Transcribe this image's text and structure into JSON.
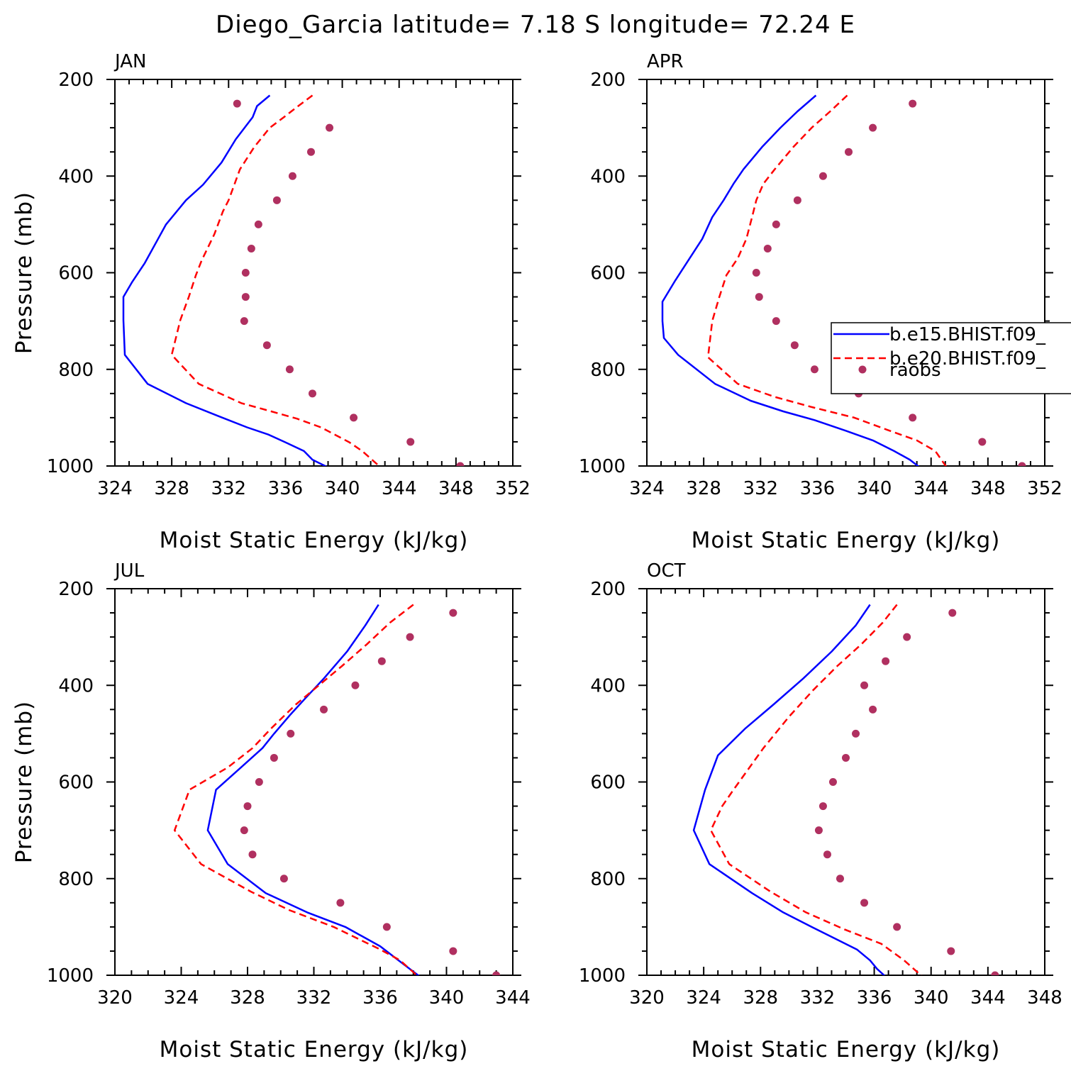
{
  "title": "Diego_Garcia  latitude= 7.18 S longitude= 72.24 E",
  "colors": {
    "model1": "#0000ff",
    "model2": "#ff0000",
    "obs": "#b03060",
    "axes": "#000000"
  },
  "legend": {
    "entries": [
      "b.e15.BHIST.f09_",
      "b.e20.BHIST.f09_",
      "raobs"
    ]
  },
  "chart_data": [
    {
      "type": "line",
      "panel": "JAN",
      "title": "JAN",
      "xlabel": "Moist Static Energy (kJ/kg)",
      "ylabel": "Pressure (mb)",
      "xlim": [
        324,
        352
      ],
      "ylim": [
        1000,
        200
      ],
      "xticks": [
        324,
        328,
        332,
        336,
        340,
        344,
        348,
        352
      ],
      "yticks": [
        200,
        400,
        600,
        800,
        1000
      ],
      "series": [
        {
          "name": "b.e15.BHIST.f09_",
          "style": "solid",
          "x": [
            334.9,
            334.0,
            333.7,
            332.5,
            331.5,
            330.2,
            329.0,
            327.6,
            327.0,
            326.1,
            325.2,
            324.6,
            324.6,
            324.7,
            326.3,
            329.0,
            331.3,
            333.3,
            334.8,
            336.0,
            337.3,
            337.9,
            339.0
          ],
          "y": [
            233,
            255,
            278,
            324,
            372,
            418,
            450,
            500,
            532,
            580,
            620,
            650,
            698,
            770,
            830,
            870,
            897,
            920,
            935,
            951,
            969,
            987,
            1003
          ]
        },
        {
          "name": "b.e20.BHIST.f09_",
          "style": "dashed",
          "x": [
            337.9,
            336.9,
            335.9,
            334.9,
            333.8,
            332.8,
            332.0,
            331.6,
            331.0,
            330.1,
            329.7,
            329.2,
            328.6,
            328.0,
            329.9,
            332.9,
            335.0,
            336.8,
            338.5,
            340.5,
            341.4,
            342.7
          ],
          "y": [
            233,
            255,
            278,
            300,
            340,
            386,
            450,
            473,
            520,
            575,
            605,
            650,
            698,
            770,
            830,
            870,
            887,
            902,
            920,
            951,
            969,
            1003
          ]
        },
        {
          "name": "raobs",
          "style": "dots",
          "x": [
            332.6,
            339.1,
            337.8,
            336.5,
            335.4,
            334.1,
            333.6,
            333.2,
            333.2,
            333.1,
            334.7,
            336.3,
            337.9,
            340.8,
            344.8,
            348.3
          ],
          "y": [
            250,
            300,
            350,
            400,
            450,
            500,
            550,
            600,
            650,
            700,
            750,
            800,
            850,
            900,
            950,
            1000
          ]
        }
      ]
    },
    {
      "type": "line",
      "panel": "APR",
      "title": "APR",
      "xlabel": "Moist Static Energy (kJ/kg)",
      "ylabel": "Pressure (mb)",
      "xlim": [
        324,
        352
      ],
      "ylim": [
        1000,
        200
      ],
      "xticks": [
        324,
        328,
        332,
        336,
        340,
        344,
        348,
        352
      ],
      "yticks": [
        200,
        400,
        600,
        800,
        1000
      ],
      "series": [
        {
          "name": "b.e15.BHIST.f09_",
          "style": "solid",
          "x": [
            335.9,
            334.6,
            333.4,
            332.1,
            330.8,
            330.1,
            329.4,
            328.6,
            327.9,
            326.0,
            325.1,
            325.1,
            325.2,
            326.2,
            328.8,
            331.3,
            333.6,
            335.8,
            338.0,
            339.9,
            341.4,
            342.5,
            343.2
          ],
          "y": [
            233,
            266,
            300,
            340,
            386,
            416,
            450,
            485,
            530,
            616,
            660,
            700,
            735,
            770,
            830,
            865,
            887,
            905,
            927,
            947,
            969,
            987,
            1003
          ]
        },
        {
          "name": "b.e20.BHIST.f09_",
          "style": "dashed",
          "x": [
            338.1,
            336.9,
            335.6,
            334.3,
            333.0,
            332.2,
            331.7,
            331.4,
            331.0,
            330.4,
            329.6,
            329.1,
            328.6,
            328.3,
            330.4,
            333.0,
            335.6,
            338.6,
            340.9,
            343.0,
            344.3,
            345.1
          ],
          "y": [
            233,
            266,
            300,
            340,
            386,
            416,
            450,
            485,
            530,
            570,
            605,
            650,
            700,
            775,
            830,
            857,
            878,
            900,
            925,
            947,
            969,
            1003
          ]
        },
        {
          "name": "raobs",
          "style": "dots",
          "x": [
            342.7,
            339.9,
            338.2,
            336.4,
            334.6,
            333.1,
            332.5,
            331.7,
            331.9,
            333.1,
            334.4,
            335.8,
            338.9,
            342.7,
            347.6,
            350.4
          ],
          "y": [
            250,
            300,
            350,
            400,
            450,
            500,
            550,
            600,
            650,
            700,
            750,
            800,
            850,
            900,
            950,
            1000
          ]
        }
      ]
    },
    {
      "type": "line",
      "panel": "JUL",
      "title": "JUL",
      "xlabel": "Moist Static Energy (kJ/kg)",
      "ylabel": "Pressure (mb)",
      "xlim": [
        320,
        344
      ],
      "ylim": [
        1000,
        200
      ],
      "xticks": [
        320,
        324,
        328,
        332,
        336,
        340,
        344
      ],
      "yticks": [
        200,
        400,
        600,
        800,
        1000
      ],
      "series": [
        {
          "name": "b.e15.BHIST.f09_",
          "style": "solid",
          "x": [
            335.9,
            335.1,
            334.0,
            332.6,
            331.4,
            330.6,
            329.6,
            328.9,
            327.6,
            326.1,
            325.6,
            326.8,
            329.1,
            331.6,
            333.9,
            336.0,
            337.1,
            338.4
          ],
          "y": [
            233,
            276,
            330,
            386,
            430,
            460,
            500,
            530,
            570,
            616,
            700,
            770,
            830,
            870,
            900,
            940,
            969,
            1003
          ]
        },
        {
          "name": "b.e20.BHIST.f09_",
          "style": "dashed",
          "x": [
            338.0,
            336.6,
            335.2,
            333.7,
            332.3,
            330.9,
            329.4,
            328.3,
            326.8,
            324.5,
            323.6,
            325.2,
            328.2,
            330.5,
            333.2,
            335.9,
            337.2,
            338.3
          ],
          "y": [
            233,
            270,
            315,
            360,
            400,
            440,
            490,
            530,
            570,
            616,
            700,
            770,
            827,
            865,
            900,
            945,
            969,
            1003
          ]
        },
        {
          "name": "raobs",
          "style": "dots",
          "x": [
            340.4,
            337.8,
            336.1,
            334.5,
            332.6,
            330.6,
            329.6,
            328.7,
            328.0,
            327.8,
            328.3,
            330.2,
            333.6,
            336.4,
            340.4,
            343.0
          ],
          "y": [
            250,
            300,
            350,
            400,
            450,
            500,
            550,
            600,
            650,
            700,
            750,
            800,
            850,
            900,
            950,
            1000
          ]
        }
      ]
    },
    {
      "type": "line",
      "panel": "OCT",
      "title": "OCT",
      "xlabel": "Moist Static Energy (kJ/kg)",
      "ylabel": "Pressure (mb)",
      "xlim": [
        320,
        348
      ],
      "ylim": [
        1000,
        200
      ],
      "xticks": [
        320,
        324,
        328,
        332,
        336,
        340,
        344,
        348
      ],
      "yticks": [
        200,
        400,
        600,
        800,
        1000
      ],
      "series": [
        {
          "name": "b.e15.BHIST.f09_",
          "style": "solid",
          "x": [
            335.7,
            334.7,
            333.0,
            331.0,
            328.9,
            326.9,
            325.0,
            324.1,
            323.3,
            324.4,
            327.4,
            329.6,
            331.6,
            333.3,
            334.8,
            335.7,
            336.2,
            336.8
          ],
          "y": [
            233,
            276,
            330,
            386,
            440,
            490,
            545,
            616,
            700,
            770,
            830,
            870,
            900,
            925,
            947,
            969,
            987,
            1003
          ]
        },
        {
          "name": "b.e20.BHIST.f09_",
          "style": "dashed",
          "x": [
            337.6,
            336.6,
            335.1,
            333.4,
            331.7,
            330.0,
            328.2,
            326.1,
            325.3,
            324.5,
            325.8,
            328.7,
            331.2,
            333.9,
            336.5,
            338.1,
            339.4
          ],
          "y": [
            233,
            270,
            315,
            360,
            410,
            465,
            530,
            616,
            650,
            700,
            770,
            827,
            870,
            905,
            935,
            969,
            1003
          ]
        },
        {
          "name": "raobs",
          "style": "dots",
          "x": [
            341.5,
            338.3,
            336.8,
            335.3,
            335.9,
            334.7,
            334.0,
            333.1,
            332.4,
            332.1,
            332.7,
            333.6,
            335.3,
            337.6,
            341.4,
            344.5
          ],
          "y": [
            250,
            300,
            350,
            400,
            450,
            500,
            550,
            600,
            650,
            700,
            750,
            800,
            850,
            900,
            950,
            1000
          ]
        }
      ]
    }
  ]
}
